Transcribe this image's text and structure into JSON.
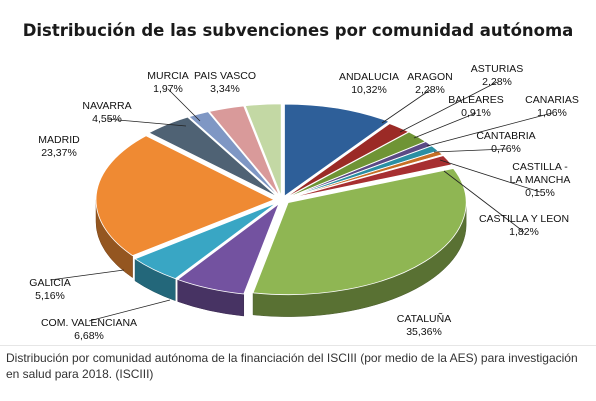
{
  "chart_data": {
    "type": "pie",
    "title": "Distribución de las subvenciones por comunidad autónoma",
    "slices": [
      {
        "label": "ANDALUCIA",
        "value_text": "10,32%",
        "value": 10.32,
        "color": "#2e5f99"
      },
      {
        "label": "ARAGON",
        "value_text": "2,28%",
        "value": 2.28,
        "color": "#9b2a26"
      },
      {
        "label": "ASTURIAS",
        "value_text": "2,28%",
        "value": 2.28,
        "color": "#6f9435"
      },
      {
        "label": "BALEARES",
        "value_text": "0,91%",
        "value": 0.91,
        "color": "#5b4a85"
      },
      {
        "label": "CANARIAS",
        "value_text": "1,06%",
        "value": 1.06,
        "color": "#2a8fa3"
      },
      {
        "label": "CANTABRIA",
        "value_text": "0,76%",
        "value": 0.76,
        "color": "#c66f25"
      },
      {
        "label": "CASTILLA - LA MANCHA",
        "value_text": "0,15%",
        "value": 0.15,
        "color": "#3d4f66"
      },
      {
        "label": "CASTILLA Y LEON",
        "value_text": "1,82%",
        "value": 1.82,
        "color": "#a72f31"
      },
      {
        "label": "CATALUÑA",
        "value_text": "35,36%",
        "value": 35.36,
        "color": "#8fb653"
      },
      {
        "label": "COM. VALENCIANA",
        "value_text": "6,68%",
        "value": 6.68,
        "color": "#7352a0"
      },
      {
        "label": "GALICIA",
        "value_text": "5,16%",
        "value": 5.16,
        "color": "#39a6c4"
      },
      {
        "label": "MADRID",
        "value_text": "23,37%",
        "value": 23.37,
        "color": "#ef8a33"
      },
      {
        "label": "NAVARRA",
        "value_text": "4,55%",
        "value": 4.55,
        "color": "#4f6274"
      },
      {
        "label": "MURCIA",
        "value_text": "1,97%",
        "value": 1.97,
        "color": "#7f97c4"
      },
      {
        "label": "PAIS VASCO",
        "value_text": "3,34%",
        "value": 3.34,
        "color": "#d99a9a"
      },
      {
        "label": "",
        "value_text": "",
        "value": 3.34,
        "color": "#c3d8a4"
      }
    ],
    "style": "3d-exploded"
  },
  "caption": "Distribución por comunidad autónoma de la financiación del ISCIII (por medio de la AES) para investigación en salud para 2018. (ISCIII)"
}
